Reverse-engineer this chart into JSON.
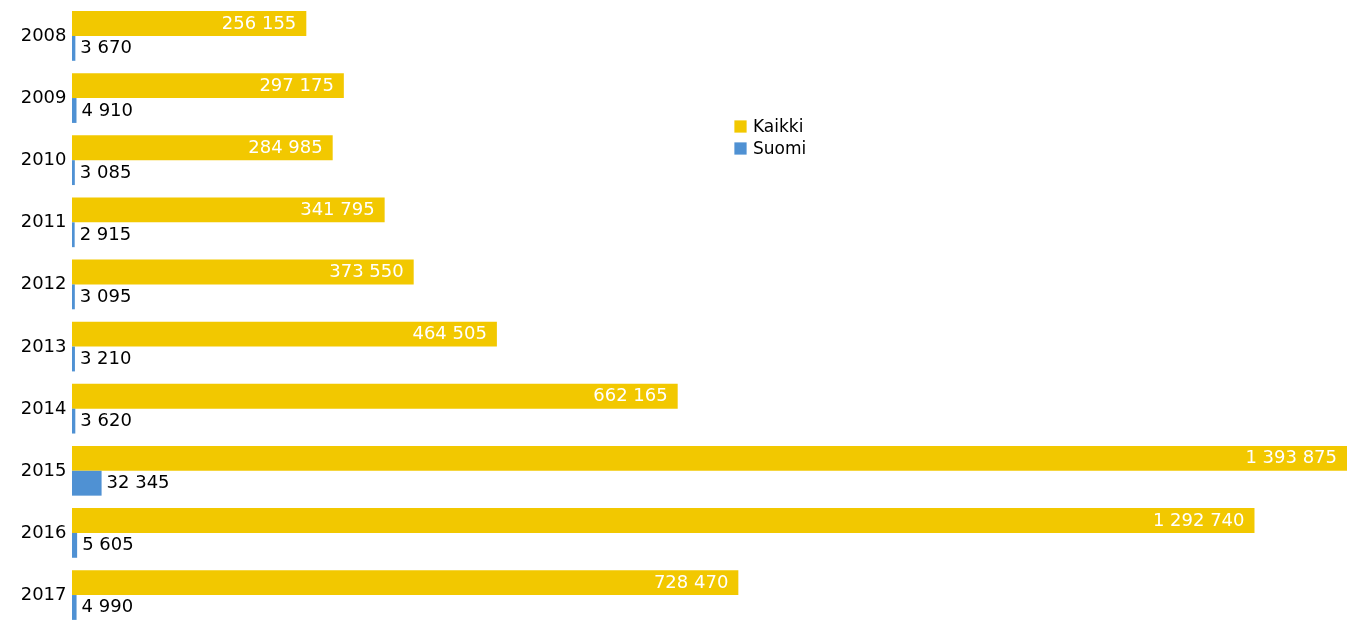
{
  "chart_data": {
    "type": "bar",
    "orientation": "horizontal",
    "data_labels": true,
    "legend": "top",
    "categories": [
      "2008",
      "2009",
      "2010",
      "2011",
      "2012",
      "2013",
      "2014",
      "2015",
      "2016",
      "2017"
    ],
    "series": [
      {
        "name": "Kaikki",
        "color": "#f2c800",
        "values": [
          256155,
          297175,
          284985,
          341795,
          373550,
          464505,
          662165,
          1393875,
          1292740,
          728470
        ]
      },
      {
        "name": "Suomi",
        "color": "#4f91d3",
        "values": [
          3670,
          4910,
          3085,
          2915,
          3095,
          3210,
          3620,
          32345,
          5605,
          4990
        ]
      }
    ]
  }
}
